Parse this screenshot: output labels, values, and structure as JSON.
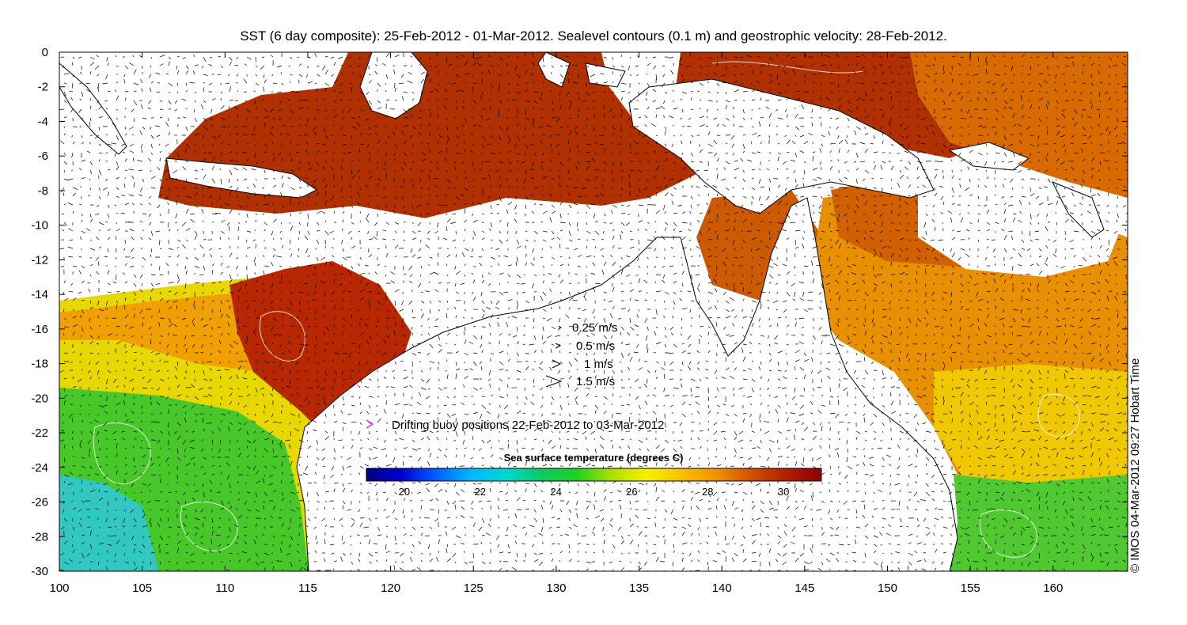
{
  "title": "SST (6 day composite): 25-Feb-2012 - 01-Mar-2012. Sealevel contours (0.1 m) and geostrophic velocity: 28-Feb-2012.",
  "credit": "© IMOS 04-Mar-2012 09:27 Hobart Time",
  "axes": {
    "lon_range": [
      100,
      164.5
    ],
    "lat_range": [
      -30,
      0
    ],
    "x_ticks": [
      "100",
      "105",
      "110",
      "115",
      "120",
      "125",
      "130",
      "135",
      "140",
      "145",
      "150",
      "155",
      "160"
    ],
    "y_ticks": [
      "0",
      "-2",
      "-4",
      "-6",
      "-8",
      "-10",
      "-12",
      "-14",
      "-16",
      "-18",
      "-20",
      "-22",
      "-24",
      "-26",
      "-28",
      "-30"
    ]
  },
  "velocity_legend": [
    {
      "label": "0.25 m/s"
    },
    {
      "label": "0.5 m/s"
    },
    {
      "label": "1 m/s"
    },
    {
      "label": "1.5 m/s"
    }
  ],
  "buoy_legend": {
    "label": "Drifting buoy positions 22-Feb-2012 to 03-Mar-2012",
    "color": "#e000e0"
  },
  "colorbar": {
    "title": "Sea surface temperature (degrees C)",
    "range": [
      19,
      31
    ],
    "ticks": [
      "20",
      "22",
      "24",
      "26",
      "28",
      "30"
    ],
    "colors": [
      "#00007f",
      "#0000d0",
      "#0060ff",
      "#00b8ff",
      "#00d8d0",
      "#10c860",
      "#20d020",
      "#a8e000",
      "#f8f000",
      "#f8c000",
      "#f09000",
      "#d05000",
      "#b02000",
      "#8a0000"
    ]
  }
}
